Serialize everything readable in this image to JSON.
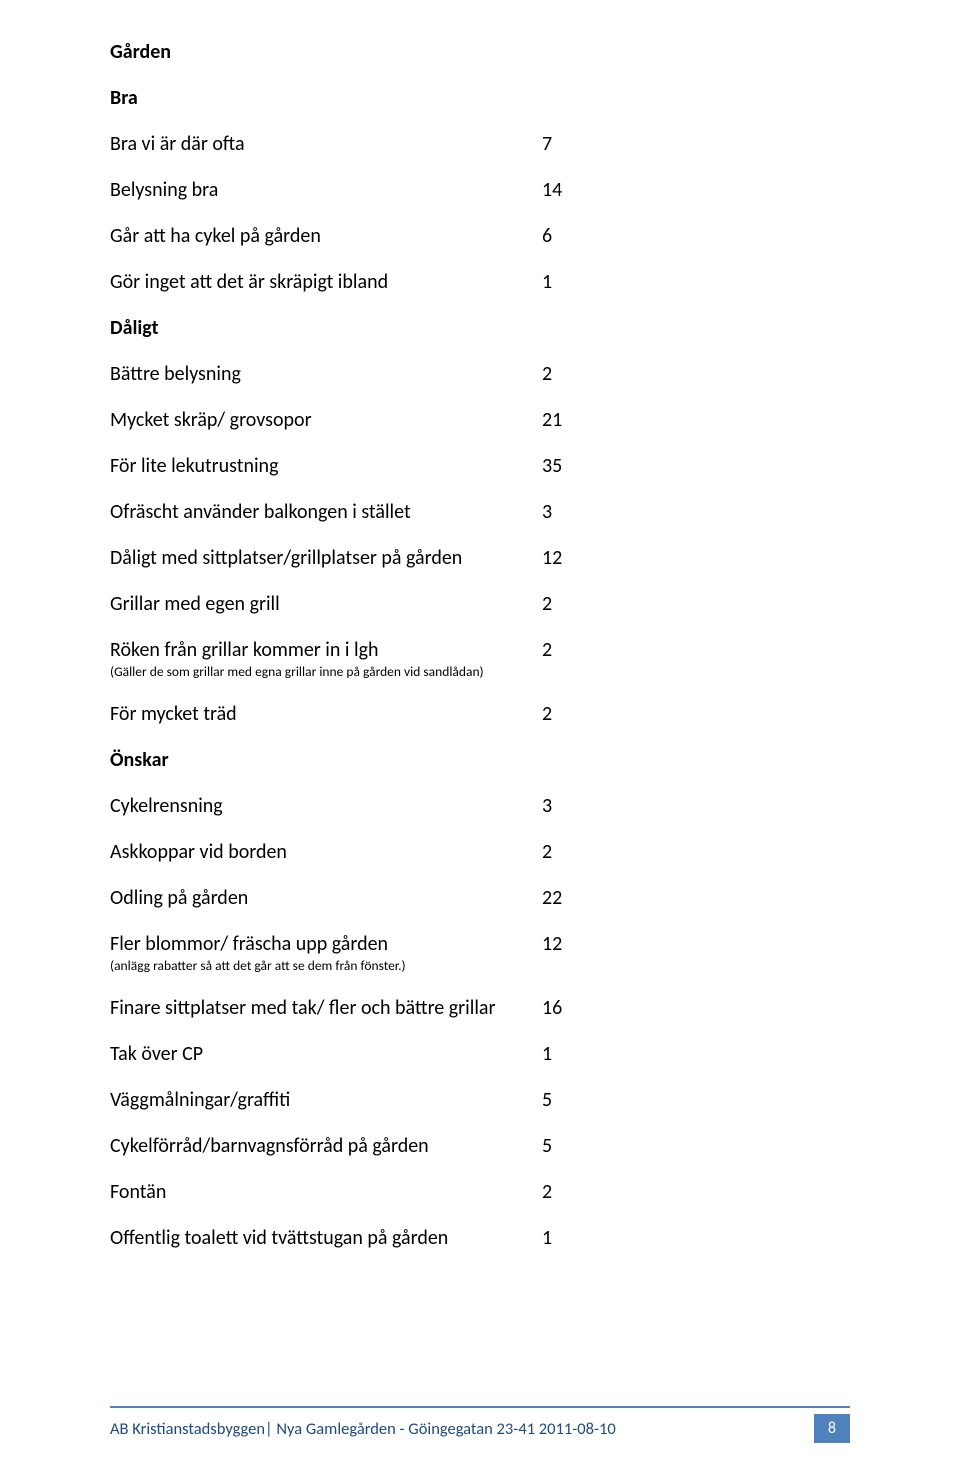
{
  "colors": {
    "text": "#000000",
    "accent_line": "#4f81bd",
    "footer_text": "#1f497d",
    "pagenum_bg": "#4f81bd",
    "pagenum_fg": "#ffffff",
    "page_bg": "#ffffff"
  },
  "section_title": "Gården",
  "groups": [
    {
      "heading": "Bra",
      "rows": [
        {
          "label": "Bra vi är där ofta",
          "value": "7"
        },
        {
          "label": "Belysning bra",
          "value": "14"
        },
        {
          "label": "Går att ha cykel på gården",
          "value": "6"
        },
        {
          "label": "Gör inget att det är skräpigt ibland",
          "value": "1"
        }
      ]
    },
    {
      "heading": "Dåligt",
      "rows": [
        {
          "label": "Bättre belysning",
          "value": "2"
        },
        {
          "label": "Mycket skräp/ grovsopor",
          "value": "21"
        },
        {
          "label": "För lite lekutrustning",
          "value": "35"
        },
        {
          "label": "Ofräscht använder balkongen i stället",
          "value": "3"
        },
        {
          "label": "Dåligt med sittplatser/grillplatser på gården",
          "value": "12"
        },
        {
          "label": "Grillar med egen grill",
          "value": "2"
        },
        {
          "label": "Röken från grillar kommer in i lgh",
          "subnote": "(Gäller de som grillar med egna grillar inne på gården vid sandlådan)",
          "value": "2"
        },
        {
          "label": "För mycket träd",
          "value": "2"
        }
      ]
    },
    {
      "heading": "Önskar",
      "rows": [
        {
          "label": "Cykelrensning",
          "value": "3"
        },
        {
          "label": "Askkoppar vid borden",
          "value": "2"
        },
        {
          "label": "Odling på gården",
          "value": "22"
        },
        {
          "label": "Fler blommor/ fräscha upp gården",
          "subnote": "(anlägg rabatter så att det går att se dem från fönster.)",
          "value": "12"
        },
        {
          "label": "Finare sittplatser med tak/ fler och bättre grillar",
          "value": "16"
        },
        {
          "label": "Tak över CP",
          "value": "1"
        },
        {
          "label": "Väggmålningar/graffiti",
          "value": "5"
        },
        {
          "label": "Cykelförråd/barnvagnsförråd på gården",
          "value": "5"
        },
        {
          "label": "Fontän",
          "value": "2"
        },
        {
          "label": "Offentlig toalett vid tvättstugan på gården",
          "value": "1"
        }
      ]
    }
  ],
  "footer": {
    "text": "AB Kristianstadsbyggen| Nya Gamlegården - Göingegatan 23-41  2011-08-10",
    "page_number": "8"
  }
}
